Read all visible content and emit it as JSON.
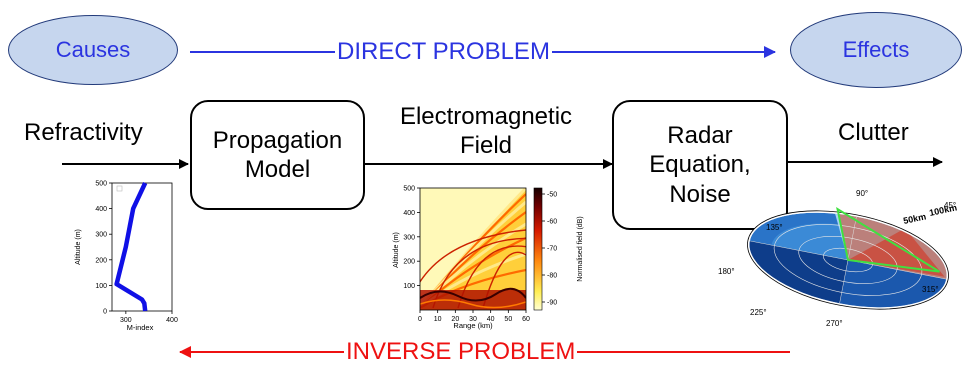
{
  "causes": "Causes",
  "effects": "Effects",
  "direct_problem": "DIRECT PROBLEM",
  "inverse_problem": "INVERSE PROBLEM",
  "refractivity": "Refractivity",
  "propagation_model": {
    "line1": "Propagation",
    "line2": "Model"
  },
  "em_field": {
    "line1": "Electromagnetic",
    "line2": "Field"
  },
  "radar_equation": {
    "line1": "Radar",
    "line2": "Equation,",
    "line3": "Noise"
  },
  "clutter": "Clutter",
  "colors": {
    "direct": "#2b34e0",
    "inverse": "#ee1111",
    "ellipse_fill": "#c6d6ee"
  },
  "chart_data": [
    {
      "type": "line",
      "xlabel": "M-index",
      "ylabel": "Altitude (m)",
      "xlim": [
        270,
        400
      ],
      "ylim": [
        0,
        500
      ],
      "xticks": [
        300,
        400
      ],
      "yticks": [
        0,
        100,
        200,
        300,
        400,
        500
      ],
      "series": [
        {
          "x": [
            342,
            340,
            335,
            280,
            300,
            316,
            342
          ],
          "y": [
            0,
            30,
            45,
            105,
            250,
            400,
            500
          ]
        }
      ]
    },
    {
      "type": "heatmap",
      "xlabel": "Range (km)",
      "ylabel": "Altitude (m)",
      "colorbar_label": "Normalised field (dB)",
      "xlim": [
        0,
        60
      ],
      "ylim": [
        0,
        500
      ],
      "xticks": [
        0,
        10,
        20,
        30,
        40,
        50,
        60
      ],
      "yticks": [
        100,
        200,
        300,
        400,
        500
      ],
      "colorbar_ticks": [
        -50,
        -60,
        -70,
        -80,
        -90
      ]
    },
    {
      "type": "polar",
      "angle_labels": [
        "90°",
        "45°",
        "135°",
        "180°",
        "225°",
        "270°",
        "315°"
      ],
      "range_labels": [
        "50km",
        "100km"
      ]
    }
  ]
}
